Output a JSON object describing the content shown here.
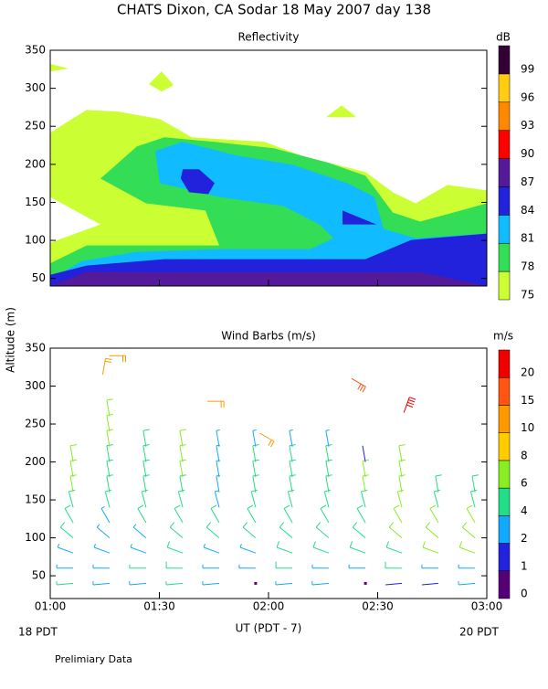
{
  "title": "CHATS Dixon, CA  Sodar  18 May 2007  day 138",
  "y_label": "Altitude (m)",
  "x_label": "UT  (PDT - 7)",
  "left_note": "18 PDT",
  "right_note": "20 PDT",
  "footer": "Prelimiary Data",
  "chart_data": [
    {
      "type": "contour",
      "title": "Reflectivity",
      "xlim": [
        1,
        3
      ],
      "xticks": [
        1,
        1.5,
        2,
        2.5,
        3
      ],
      "ylim": [
        40,
        350
      ],
      "yticks": [
        50,
        100,
        150,
        200,
        250,
        300,
        350
      ],
      "colorbar": {
        "label": "dB",
        "levels": [
          75,
          78,
          81,
          84,
          87,
          90,
          93,
          96,
          99
        ],
        "colors": [
          "#ccff33",
          "#33dd55",
          "#11bbff",
          "#2222dd",
          "#551a99",
          "#ff0000",
          "#ff8800",
          "#ffcc11",
          "#330033"
        ]
      },
      "regions": [
        {
          "level": 75,
          "polygons": [
            [
              [
                1,
                241.6
              ],
              [
                1.167,
                271.7
              ],
              [
                1.314,
                269.3
              ],
              [
                1.502,
                259.6
              ],
              [
                1.649,
                235.5
              ],
              [
                1.983,
                229.5
              ],
              [
                2.151,
                211.4
              ],
              [
                2.444,
                189.8
              ],
              [
                2.569,
                163.3
              ],
              [
                2.674,
                148.8
              ],
              [
                2.82,
                172.9
              ],
              [
                3,
                165.7
              ],
              [
                3,
                40
              ],
              [
                1,
                40
              ],
              [
                1,
                97
              ],
              [
                1.23,
                121
              ],
              [
                1,
                157
              ]
            ],
            [
              [
                1.452,
                305.4
              ],
              [
                1.51,
                322.3
              ],
              [
                1.565,
                304.2
              ],
              [
                1.51,
                295.8
              ]
            ],
            [
              [
                2.264,
                262
              ],
              [
                2.335,
                277.7
              ],
              [
                2.402,
                262
              ]
            ],
            [
              [
                1,
                332
              ],
              [
                1.084,
                326
              ],
              [
                1,
                322
              ]
            ]
          ]
        },
        {
          "level": 78,
          "polygons": [
            [
              [
                1,
                69.9
              ],
              [
                1.167,
                93.4
              ],
              [
                1.774,
                93.4
              ],
              [
                1.711,
                139.2
              ],
              [
                1.439,
                148.8
              ],
              [
                1.23,
                181.3
              ],
              [
                1.397,
                223.5
              ],
              [
                1.523,
                235.5
              ],
              [
                1.753,
                229.5
              ],
              [
                2.025,
                221.1
              ],
              [
                2.276,
                201.8
              ],
              [
                2.444,
                185
              ],
              [
                2.569,
                136.7
              ],
              [
                2.695,
                124.7
              ],
              [
                3,
                148.8
              ],
              [
                3,
                40
              ],
              [
                1,
                40
              ]
            ]
          ]
        },
        {
          "level": 81,
          "polygons": [
            [
              [
                1,
                48.8
              ],
              [
                1.146,
                72.9
              ],
              [
                1.397,
                84.9
              ],
              [
                1.774,
                88.6
              ],
              [
                2.192,
                88.6
              ],
              [
                2.297,
                103
              ],
              [
                2.234,
                121
              ],
              [
                2.067,
                145.2
              ],
              [
                1.774,
                157.2
              ],
              [
                1.502,
                175.3
              ],
              [
                1.481,
                217.5
              ],
              [
                1.607,
                229.5
              ],
              [
                1.858,
                211.4
              ],
              [
                2.109,
                199.4
              ],
              [
                2.36,
                175.3
              ],
              [
                2.485,
                157.2
              ],
              [
                2.527,
                115.1
              ],
              [
                2.674,
                103
              ],
              [
                3,
                109
              ],
              [
                3,
                40
              ],
              [
                1,
                40
              ]
            ]
          ]
        },
        {
          "level": 84,
          "polygons": [
            [
              [
                1,
                40
              ],
              [
                1,
                54.8
              ],
              [
                1.167,
                66.9
              ],
              [
                1.523,
                75.3
              ],
              [
                2.444,
                75.3
              ],
              [
                2.653,
                100.6
              ],
              [
                3,
                109
              ],
              [
                3,
                40
              ]
            ],
            [
              [
                1.607,
                193.4
              ],
              [
                1.682,
                193.4
              ],
              [
                1.753,
                175.3
              ],
              [
                1.724,
                160.8
              ],
              [
                1.636,
                163.3
              ],
              [
                1.598,
                181.3
              ]
            ],
            [
              [
                2.339,
                139.2
              ],
              [
                2.494,
                121
              ],
              [
                2.339,
                121
              ]
            ]
          ]
        },
        {
          "level": 87,
          "polygons": [
            [
              [
                1,
                40
              ],
              [
                1.167,
                58.4
              ],
              [
                2.695,
                58.4
              ],
              [
                3,
                40
              ]
            ]
          ]
        }
      ]
    },
    {
      "type": "barbs",
      "title": "Wind Barbs (m/s)",
      "xlim": [
        1,
        3
      ],
      "xticks": [
        {
          "value": 1,
          "label": "01:00"
        },
        {
          "value": 1.5,
          "label": "01:30"
        },
        {
          "value": 2,
          "label": "02:00"
        },
        {
          "value": 2.5,
          "label": "02:30"
        },
        {
          "value": 3,
          "label": "03:00"
        }
      ],
      "ylim": [
        20,
        350
      ],
      "yticks": [
        50,
        100,
        150,
        200,
        250,
        300,
        350
      ],
      "colorbar": {
        "label": "m/s",
        "levels": [
          0,
          1,
          2,
          4,
          6,
          8,
          10,
          15,
          20
        ],
        "colors": [
          "#550077",
          "#2222dd",
          "#11aaff",
          "#22dd88",
          "#88ee22",
          "#ffcc00",
          "#ff9900",
          "#ff5511",
          "#ee0000"
        ]
      },
      "times": [
        1.105,
        1.272,
        1.439,
        1.607,
        1.774,
        1.941,
        2.109,
        2.276,
        2.444,
        2.611,
        2.778,
        2.946
      ],
      "altitudes": [
        40,
        60,
        80,
        100,
        120,
        140,
        160,
        180,
        200,
        220,
        240,
        260
      ],
      "directions": [
        265,
        270,
        290,
        310,
        330,
        345,
        350,
        350,
        350,
        350,
        350,
        350
      ],
      "speeds": [
        [
          4,
          3,
          2.5,
          5,
          5,
          5,
          6,
          6,
          6,
          null,
          null,
          null
        ],
        [
          3,
          3,
          3,
          3,
          2.5,
          5,
          5,
          5,
          5,
          6,
          6,
          7
        ],
        [
          3,
          4,
          3,
          3,
          5,
          5,
          5,
          5,
          5,
          5,
          null,
          null
        ],
        [
          4,
          5,
          5,
          5,
          5,
          5,
          5,
          6,
          6,
          6,
          null,
          null
        ],
        [
          3,
          3,
          3,
          5,
          5,
          3,
          3,
          3,
          3,
          3,
          null,
          null
        ],
        [
          0.5,
          3,
          3,
          5,
          5,
          5,
          5,
          5,
          5,
          3,
          null,
          null
        ],
        [
          3,
          5,
          5,
          5,
          5,
          5,
          5,
          5,
          5,
          3,
          null,
          null
        ],
        [
          3,
          3,
          5,
          5,
          5,
          5,
          5,
          5,
          5,
          3,
          null,
          null
        ],
        [
          0.5,
          3,
          5,
          5,
          5,
          5,
          6,
          6,
          1.5,
          null,
          null,
          null
        ],
        [
          1.5,
          5,
          5,
          6,
          6,
          6,
          6,
          6,
          6,
          null,
          null,
          null
        ],
        [
          1.5,
          3,
          7,
          7,
          7,
          5,
          5,
          null,
          null,
          null,
          null,
          null
        ],
        [
          3,
          3,
          7,
          7,
          7,
          5,
          5,
          null,
          null,
          null,
          null,
          null
        ]
      ],
      "upper": {
        "x": [
          1.27,
          1.24,
          1.72,
          1.96,
          2.38,
          2.62
        ],
        "y": [
          340,
          315,
          280,
          238,
          310,
          265
        ],
        "speeds": [
          12,
          12,
          12,
          12,
          15,
          20
        ],
        "directions": [
          90,
          10,
          90,
          120,
          120,
          20
        ]
      }
    }
  ]
}
